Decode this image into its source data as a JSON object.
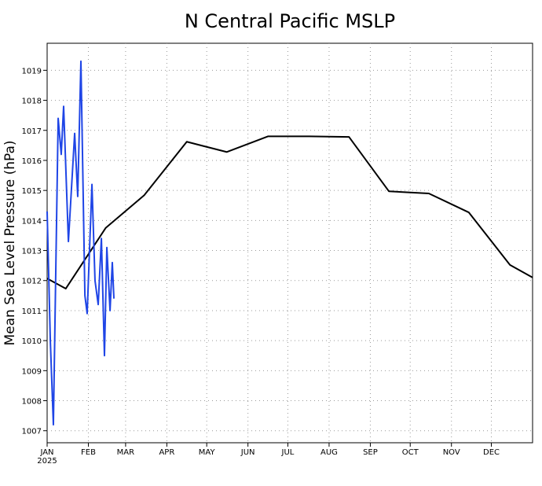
{
  "chart_data": {
    "type": "line",
    "title": "N Central Pacific MSLP",
    "y_label": "Mean Sea Level Pressure (hPa)",
    "year_label": "2025",
    "xlim": [
      0,
      365
    ],
    "xticks": [
      {
        "value": 0,
        "label": "JAN"
      },
      {
        "value": 31,
        "label": "FEB"
      },
      {
        "value": 59,
        "label": "MAR"
      },
      {
        "value": 90,
        "label": "APR"
      },
      {
        "value": 120,
        "label": "MAY"
      },
      {
        "value": 151,
        "label": "JUN"
      },
      {
        "value": 181,
        "label": "JUL"
      },
      {
        "value": 212,
        "label": "AUG"
      },
      {
        "value": 243,
        "label": "SEP"
      },
      {
        "value": 273,
        "label": "OCT"
      },
      {
        "value": 304,
        "label": "NOV"
      },
      {
        "value": 334,
        "label": "DEC"
      }
    ],
    "ylim": [
      1006.6,
      1019.9
    ],
    "yticks": [
      1007,
      1008,
      1009,
      1010,
      1011,
      1012,
      1013,
      1014,
      1015,
      1016,
      1017,
      1018,
      1019
    ],
    "grid": true,
    "series": [
      {
        "color": "#000000",
        "x": [
          0,
          14,
          44,
          73,
          105,
          135,
          166,
          197,
          227,
          257,
          287,
          317,
          348,
          365
        ],
        "values": [
          1012.07,
          1011.73,
          1013.75,
          1014.84,
          1016.62,
          1016.28,
          1016.8,
          1016.8,
          1016.78,
          1014.97,
          1014.9,
          1014.27,
          1012.52,
          1012.1
        ]
      },
      {
        "color": "#1f45e6",
        "x": [
          0,
          2.4,
          4.7,
          8.3,
          10.6,
          12.4,
          16,
          20.7,
          23,
          25.4,
          28.4,
          30.1,
          33.7,
          36,
          38.4,
          40.8,
          43.1,
          44.9,
          47.3,
          49,
          50.2
        ],
        "values": [
          1014.3,
          1010,
          1007.2,
          1017.4,
          1016.2,
          1017.8,
          1013.3,
          1016.9,
          1014.8,
          1019.3,
          1011.5,
          1010.9,
          1015.2,
          1012,
          1011.2,
          1013.4,
          1009.5,
          1013.1,
          1011,
          1012.6,
          1011.4
        ]
      }
    ]
  }
}
